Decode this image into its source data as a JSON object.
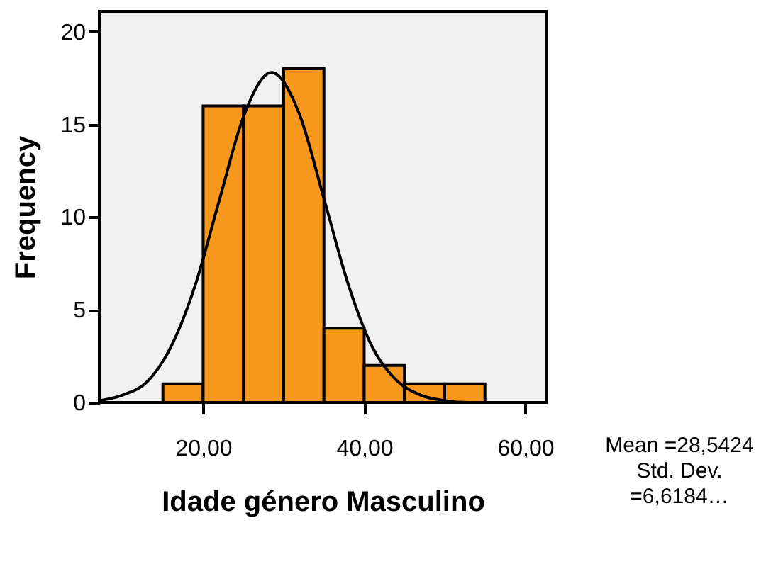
{
  "chart_data": {
    "type": "histogram",
    "xlabel": "Idade género Masculino",
    "ylabel": "Frequency",
    "bins": [
      15,
      20,
      25,
      30,
      35,
      40,
      45,
      50,
      55
    ],
    "values": [
      1,
      16,
      16,
      18,
      4,
      2,
      1,
      1
    ],
    "color": "#f7981d",
    "series": [
      {
        "type": "line",
        "color": "#000000",
        "x": [
          7.1,
          10,
          13,
          16,
          19,
          22,
          25,
          28.5,
          32,
          35,
          38,
          41,
          44,
          47,
          50,
          53,
          56,
          58.5
        ],
        "values": [
          0.1,
          0.4,
          1.1,
          3.0,
          6.3,
          10.9,
          15.4,
          17.8,
          15.5,
          11.0,
          6.4,
          3.0,
          1.2,
          0.4,
          0.1,
          0,
          0,
          0
        ]
      }
    ],
    "xlim": [
      7.1,
      62.6
    ],
    "ylim": [
      0,
      21.1
    ],
    "xticks": [
      {
        "value": 20,
        "label": "20,00"
      },
      {
        "value": 40,
        "label": "40,00"
      },
      {
        "value": 60,
        "label": "60,00"
      }
    ],
    "yticks": [
      0,
      5,
      10,
      15,
      20
    ],
    "grid": false,
    "annotations": [
      "Mean =28,5424",
      "Std. Dev. =6,6184…"
    ]
  }
}
